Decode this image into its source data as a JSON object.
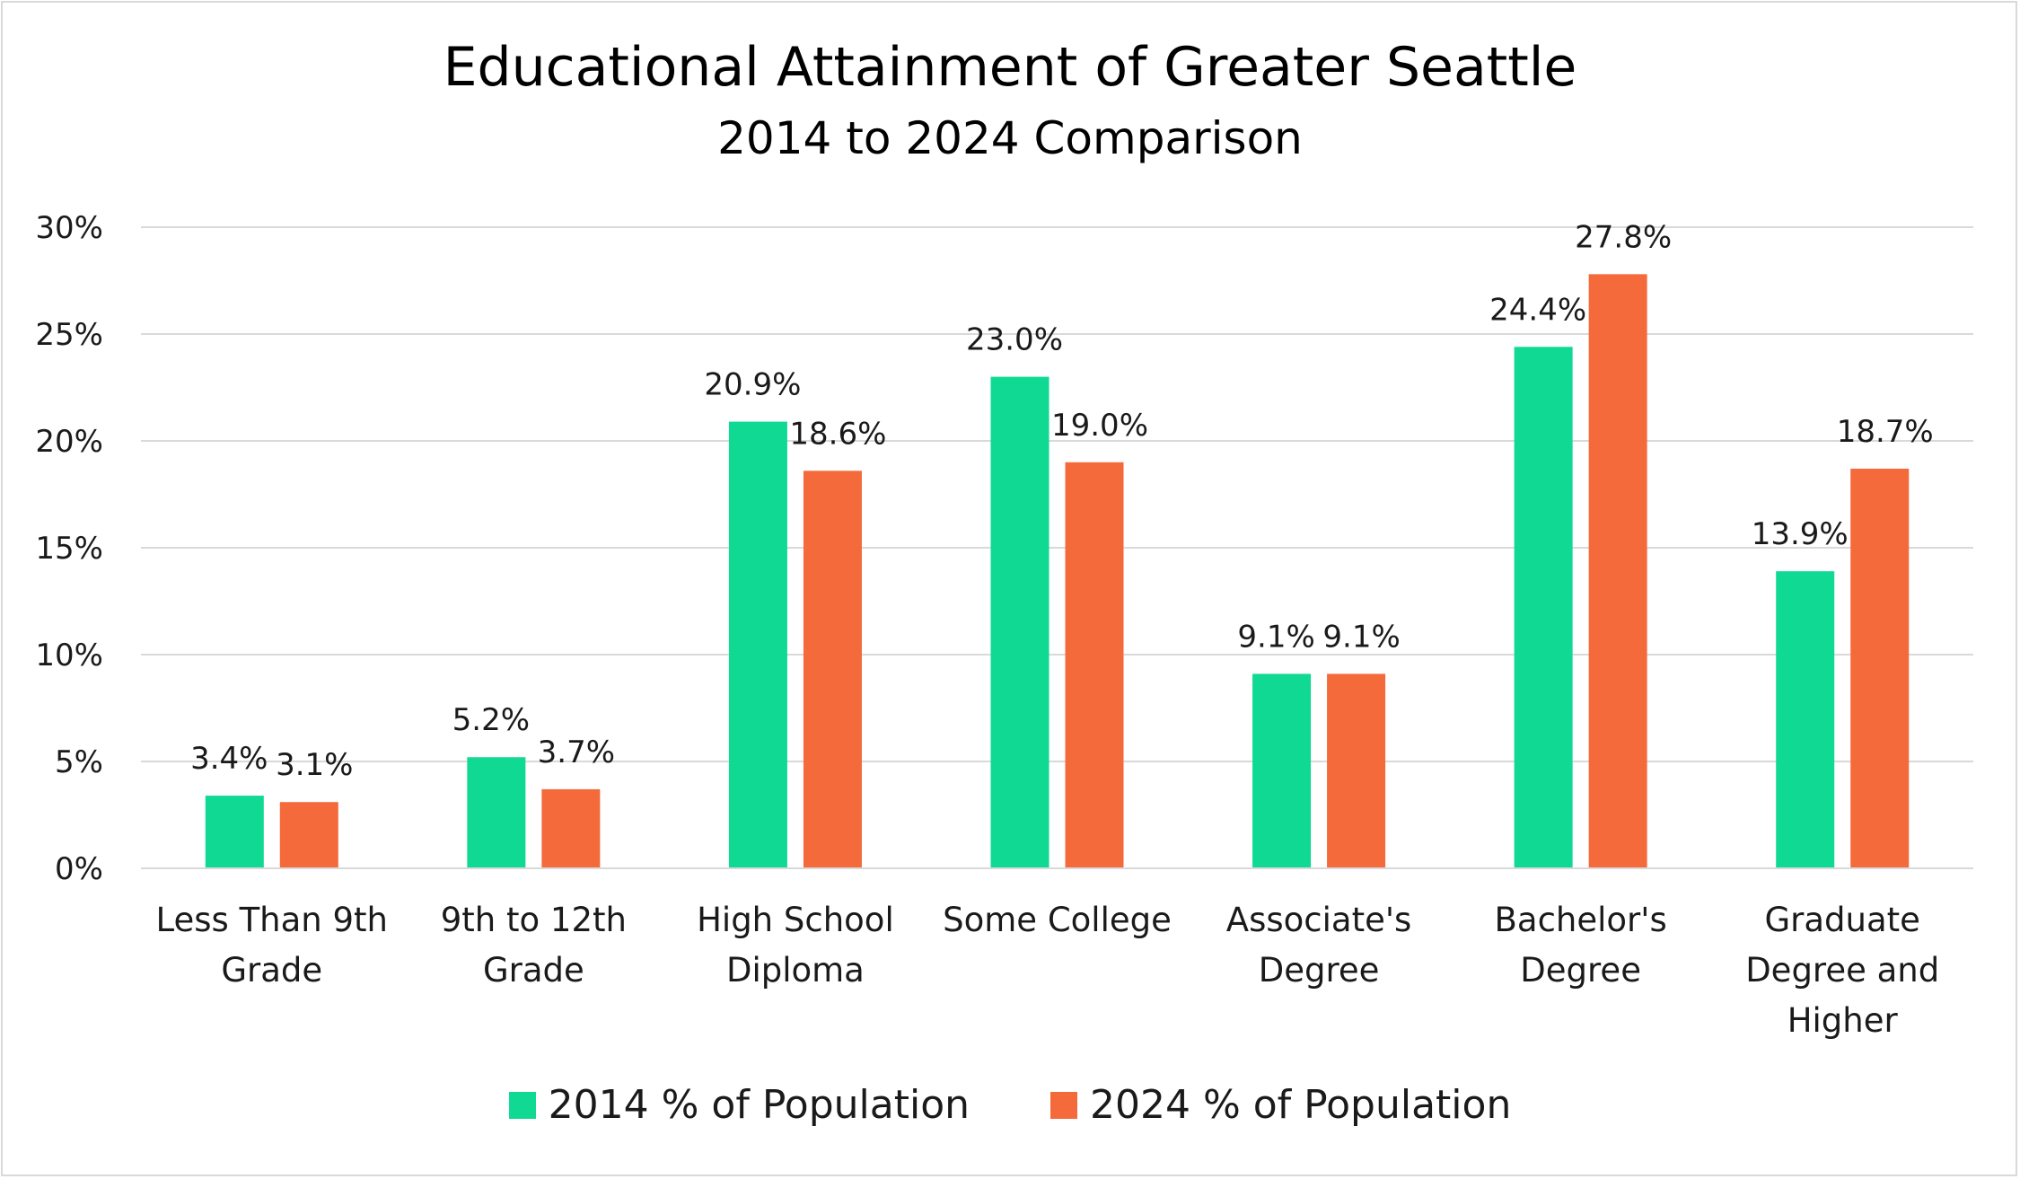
{
  "chart_data": {
    "type": "bar",
    "title": "Educational Attainment of Greater Seattle",
    "subtitle": "2014 to 2024 Comparison",
    "categories": [
      [
        "Less Than 9th",
        "Grade"
      ],
      [
        "9th to 12th",
        "Grade"
      ],
      [
        "High School",
        "Diploma"
      ],
      [
        "Some College"
      ],
      [
        "Associate's",
        "Degree"
      ],
      [
        "Bachelor's",
        "Degree"
      ],
      [
        "Graduate",
        "Degree and",
        "Higher"
      ]
    ],
    "series": [
      {
        "name": "2014 % of Population",
        "color": "#10d994",
        "values": [
          3.4,
          5.2,
          20.9,
          23.0,
          9.1,
          24.4,
          13.9
        ],
        "labels": [
          "3.4%",
          "5.2%",
          "20.9%",
          "23.0%",
          "9.1%",
          "24.4%",
          "13.9%"
        ]
      },
      {
        "name": "2024 % of Population",
        "color": "#f46a3b",
        "values": [
          3.1,
          3.7,
          18.6,
          19.0,
          9.1,
          27.8,
          18.7
        ],
        "labels": [
          "3.1%",
          "3.7%",
          "18.6%",
          "19.0%",
          "9.1%",
          "27.8%",
          "18.7%"
        ]
      }
    ],
    "ylim": [
      0,
      30
    ],
    "yticks": [
      0,
      5,
      10,
      15,
      20,
      25,
      30
    ],
    "ytick_labels": [
      "0%",
      "5%",
      "10%",
      "15%",
      "20%",
      "25%",
      "30%"
    ],
    "grid": true,
    "legend_position": "bottom"
  }
}
